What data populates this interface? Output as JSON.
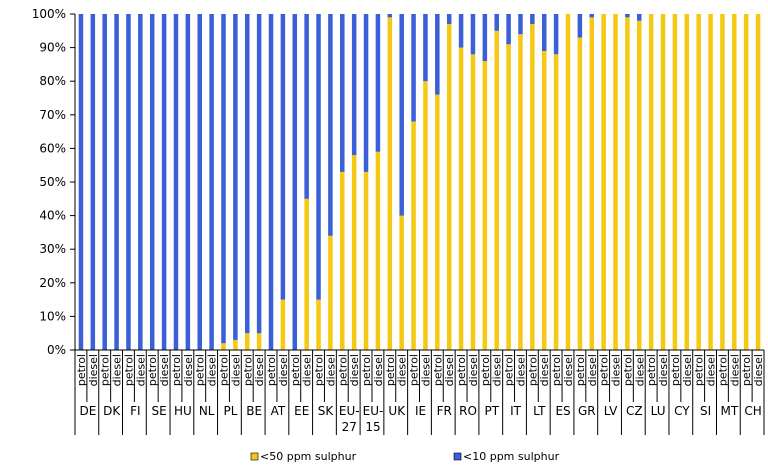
{
  "chart_data": {
    "type": "bar",
    "stacked": true,
    "title": "",
    "xlabel": "",
    "ylabel": "",
    "ylim": [
      0,
      100
    ],
    "y_ticks": [
      "0%",
      "10%",
      "20%",
      "30%",
      "40%",
      "50%",
      "60%",
      "70%",
      "80%",
      "90%",
      "100%"
    ],
    "grid": false,
    "legend_position": "bottom",
    "colors": {
      "<50 ppm sulphur": "#f5c913",
      "<10 ppm sulphur": "#3a5fd6"
    },
    "groups": [
      "DE",
      "DK",
      "FI",
      "SE",
      "HU",
      "NL",
      "PL",
      "BE",
      "AT",
      "EE",
      "SK",
      "EU-27",
      "EU-15",
      "UK",
      "IE",
      "FR",
      "RO",
      "PT",
      "IT",
      "LT",
      "ES",
      "GR",
      "LV",
      "CZ",
      "LU",
      "CY",
      "SI",
      "MT",
      "CH"
    ],
    "fuels": [
      "petrol",
      "diesel"
    ],
    "categories": [
      "DE petrol",
      "DE diesel",
      "DK petrol",
      "DK diesel",
      "FI petrol",
      "FI diesel",
      "SE petrol",
      "SE diesel",
      "HU petrol",
      "HU diesel",
      "NL petrol",
      "NL diesel",
      "PL petrol",
      "PL diesel",
      "BE petrol",
      "BE diesel",
      "AT petrol",
      "AT diesel",
      "EE petrol",
      "EE diesel",
      "SK petrol",
      "SK diesel",
      "EU-27 petrol",
      "EU-27 diesel",
      "EU-15 petrol",
      "EU-15 diesel",
      "UK petrol",
      "UK diesel",
      "IE petrol",
      "IE diesel",
      "FR petrol",
      "FR diesel",
      "RO petrol",
      "RO diesel",
      "PT petrol",
      "PT diesel",
      "IT petrol",
      "IT diesel",
      "LT petrol",
      "LT diesel",
      "ES petrol",
      "ES diesel",
      "GR petrol",
      "GR diesel",
      "LV petrol",
      "LV diesel",
      "CZ petrol",
      "CZ diesel",
      "LU petrol",
      "LU diesel",
      "CY petrol",
      "CY diesel",
      "SI petrol",
      "SI diesel",
      "MT petrol",
      "MT diesel",
      "CH petrol",
      "CH diesel"
    ],
    "series": [
      {
        "name": "<50 ppm sulphur",
        "values": [
          0,
          0,
          0,
          0,
          0,
          0,
          0,
          0,
          0,
          0,
          0,
          0,
          2,
          3,
          5,
          5,
          0,
          15,
          0,
          45,
          15,
          34,
          53,
          58,
          53,
          59,
          99,
          40,
          68,
          80,
          76,
          97,
          90,
          88,
          86,
          95,
          91,
          94,
          97,
          89,
          88,
          100,
          93,
          99,
          100,
          100,
          99,
          98,
          100,
          100,
          100,
          100,
          100,
          100,
          100,
          100,
          100,
          100
        ]
      },
      {
        "name": "<10 ppm sulphur",
        "values": [
          100,
          100,
          100,
          100,
          100,
          100,
          100,
          100,
          100,
          100,
          100,
          100,
          98,
          97,
          95,
          95,
          100,
          85,
          100,
          55,
          85,
          66,
          47,
          42,
          47,
          41,
          1,
          60,
          32,
          20,
          24,
          3,
          10,
          12,
          14,
          5,
          9,
          6,
          3,
          11,
          12,
          0,
          7,
          1,
          0,
          0,
          1,
          2,
          0,
          0,
          0,
          0,
          0,
          0,
          0,
          0,
          0,
          0
        ]
      }
    ]
  }
}
